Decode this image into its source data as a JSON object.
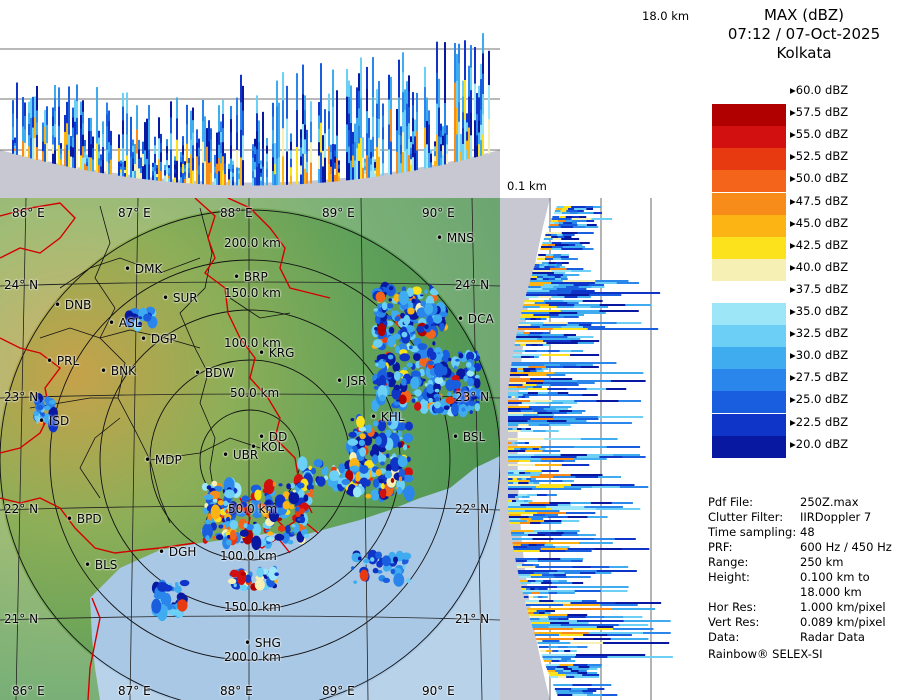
{
  "product": {
    "title": "MAX (dBZ)",
    "datetime": "07:12 / 07-Oct-2025",
    "site": "Kolkata"
  },
  "height_labels": {
    "top": "18.0 km",
    "bottom": "0.1 km"
  },
  "legend": [
    {
      "label": "60.0 dBZ",
      "color": "#ffffff"
    },
    {
      "label": "57.5 dBZ",
      "color": "#b00000"
    },
    {
      "label": "55.0 dBZ",
      "color": "#d21010"
    },
    {
      "label": "52.5 dBZ",
      "color": "#e83a10"
    },
    {
      "label": "50.0 dBZ",
      "color": "#f4641a"
    },
    {
      "label": "47.5 dBZ",
      "color": "#f88c1a"
    },
    {
      "label": "45.0 dBZ",
      "color": "#fcb414"
    },
    {
      "label": "42.5 dBZ",
      "color": "#fce21c"
    },
    {
      "label": "40.0 dBZ",
      "color": "#f6f0b4"
    },
    {
      "label": "37.5 dBZ",
      "color": "#ffffff"
    },
    {
      "label": "35.0 dBZ",
      "color": "#9ce6f8"
    },
    {
      "label": "32.5 dBZ",
      "color": "#6cd0f6"
    },
    {
      "label": "30.0 dBZ",
      "color": "#40acf0"
    },
    {
      "label": "27.5 dBZ",
      "color": "#2a86ea"
    },
    {
      "label": "25.0 dBZ",
      "color": "#1a5ee0"
    },
    {
      "label": "22.5 dBZ",
      "color": "#0e34c8"
    },
    {
      "label": "20.0 dBZ",
      "color": "#0818a0"
    }
  ],
  "info": [
    {
      "key": "Pdf File:",
      "value": "250Z.max"
    },
    {
      "key": "Clutter Filter:",
      "value": "IIRDoppler 7"
    },
    {
      "key": "Time sampling:",
      "value": "48"
    },
    {
      "key": "PRF:",
      "value": "600 Hz / 450 Hz"
    },
    {
      "key": "Range:",
      "value": "250 km"
    },
    {
      "key": "Height:",
      "value": "0.100 km to"
    },
    {
      "key": "",
      "value": "18.000 km"
    },
    {
      "key": "Hor Res:",
      "value": "1.000 km/pixel"
    },
    {
      "key": "Vert Res:",
      "value": "0.089 km/pixel"
    },
    {
      "key": "Data:",
      "value": "Radar Data"
    }
  ],
  "footer": "Rainbow® SELEX-SI",
  "map": {
    "longitude_labels": [
      "86° E",
      "87° E",
      "88° E",
      "89° E",
      "90° E"
    ],
    "latitude_labels": [
      "24° N",
      "23° N",
      "22° N",
      "21° N"
    ],
    "range_labels": [
      "50.0 km",
      "100.0 km",
      "150.0 km",
      "200.0 km"
    ],
    "stations": [
      "DMK",
      "BRP",
      "MNS",
      "DNB",
      "SUR",
      "ASL",
      "DGP",
      "DCA",
      "KRG",
      "PRL",
      "BNK",
      "BDW",
      "JSR",
      "KHL",
      "ISD",
      "DD",
      "KOL",
      "BSL",
      "MDP",
      "UBR",
      "BPD",
      "DGH",
      "BLS",
      "SHG"
    ]
  },
  "colors": {
    "sea": "#a9c8e6",
    "land_low": "#5ea05a",
    "land_high": "#c6a24a",
    "border": "#d40000",
    "district": "#000000",
    "panel_bg": "#c8c8d2"
  }
}
